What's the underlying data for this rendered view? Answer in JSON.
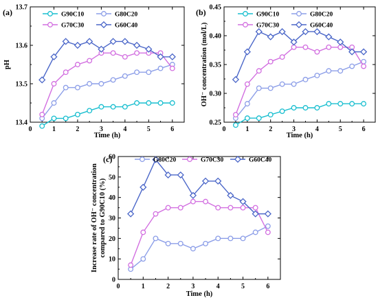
{
  "series_styles": {
    "G90C10": {
      "color": "#17becf",
      "marker": "circle"
    },
    "G80C20": {
      "color": "#8c9ee8",
      "marker": "circle"
    },
    "G70C30": {
      "color": "#d26ee0",
      "marker": "circle"
    },
    "G60C40": {
      "color": "#4a66c8",
      "marker": "diamond"
    }
  },
  "chart_data": [
    {
      "panel": "(a)",
      "type": "line",
      "xlabel": "Time (h)",
      "ylabel": "pH",
      "xlim": [
        0,
        6.5
      ],
      "ylim": [
        13.4,
        13.7
      ],
      "xticks": [
        0,
        1,
        2,
        3,
        4,
        5,
        6
      ],
      "xtick_labels": [
        "0",
        "1",
        "2",
        "3",
        "4",
        "5",
        "6"
      ],
      "yticks": [
        13.4,
        13.5,
        13.6,
        13.7
      ],
      "ytick_labels": [
        "13.4",
        "13.5",
        "13.6",
        "13.7"
      ],
      "legend": "top",
      "x": [
        0.5,
        1,
        1.5,
        2,
        2.5,
        3,
        3.5,
        4,
        4.5,
        5,
        5.5,
        6
      ],
      "series": [
        {
          "name": "G90C10",
          "values": [
            13.39,
            13.41,
            13.41,
            13.42,
            13.43,
            13.44,
            13.44,
            13.44,
            13.45,
            13.45,
            13.45,
            13.45
          ]
        },
        {
          "name": "G80C20",
          "values": [
            13.41,
            13.45,
            13.49,
            13.49,
            13.5,
            13.5,
            13.51,
            13.52,
            13.53,
            13.53,
            13.54,
            13.55
          ]
        },
        {
          "name": "G70C30",
          "values": [
            13.42,
            13.5,
            13.53,
            13.55,
            13.56,
            13.58,
            13.58,
            13.57,
            13.58,
            13.58,
            13.58,
            13.54
          ]
        },
        {
          "name": "G60C40",
          "values": [
            13.51,
            13.57,
            13.61,
            13.6,
            13.61,
            13.59,
            13.61,
            13.61,
            13.6,
            13.59,
            13.57,
            13.57
          ]
        }
      ]
    },
    {
      "panel": "(b)",
      "type": "line",
      "xlabel": "Time (h)",
      "ylabel": "OH⁻ concentration (mol/L)",
      "xlim": [
        0,
        6.5
      ],
      "ylim": [
        0.25,
        0.45
      ],
      "xticks": [
        0,
        1,
        2,
        3,
        4,
        5,
        6
      ],
      "xtick_labels": [
        "0",
        "1",
        "2",
        "3",
        "4",
        "5",
        "6"
      ],
      "yticks": [
        0.25,
        0.3,
        0.35,
        0.4,
        0.45
      ],
      "ytick_labels": [
        "0.25",
        "0.30",
        "0.35",
        "0.40",
        "0.45"
      ],
      "legend": "top",
      "x": [
        0.5,
        1,
        1.5,
        2,
        2.5,
        3,
        3.5,
        4,
        4.5,
        5,
        5.5,
        6
      ],
      "series": [
        {
          "name": "G90C10",
          "values": [
            0.245,
            0.257,
            0.257,
            0.263,
            0.269,
            0.275,
            0.275,
            0.275,
            0.282,
            0.282,
            0.282,
            0.282
          ]
        },
        {
          "name": "G80C20",
          "values": [
            0.257,
            0.282,
            0.309,
            0.309,
            0.316,
            0.316,
            0.324,
            0.331,
            0.339,
            0.339,
            0.347,
            0.355
          ]
        },
        {
          "name": "G70C30",
          "values": [
            0.263,
            0.316,
            0.339,
            0.355,
            0.363,
            0.38,
            0.38,
            0.372,
            0.38,
            0.38,
            0.38,
            0.347
          ]
        },
        {
          "name": "G60C40",
          "values": [
            0.324,
            0.372,
            0.407,
            0.398,
            0.407,
            0.389,
            0.407,
            0.407,
            0.398,
            0.389,
            0.372,
            0.372
          ]
        }
      ]
    },
    {
      "panel": "(c)",
      "type": "line",
      "xlabel": "Time (h)",
      "ylabel": "Increase rate of OH⁻ concentration compared to G90C10 (%)",
      "ylabel_lines": [
        "Increase rate of OH⁻ concentration",
        "compared to G90C10 (%)"
      ],
      "xlim": [
        0,
        6.5
      ],
      "ylim": [
        0,
        60
      ],
      "xticks": [
        0,
        1,
        2,
        3,
        4,
        5,
        6
      ],
      "xtick_labels": [
        "0",
        "1",
        "2",
        "3",
        "4",
        "5",
        "6"
      ],
      "yticks": [
        0,
        10,
        20,
        30,
        40,
        50,
        60
      ],
      "ytick_labels": [
        "0",
        "10",
        "20",
        "30",
        "40",
        "50",
        "60"
      ],
      "legend": "top",
      "x": [
        0.5,
        1,
        1.5,
        2,
        2.5,
        3,
        3.5,
        4,
        4.5,
        5,
        5.5,
        6
      ],
      "series": [
        {
          "name": "G80C20",
          "values": [
            5,
            10,
            20,
            17.5,
            17.5,
            15,
            17.5,
            20,
            20,
            20,
            23,
            26
          ]
        },
        {
          "name": "G70C30",
          "values": [
            7,
            23,
            32,
            35,
            35,
            38,
            38,
            35,
            35,
            35,
            35,
            23
          ]
        },
        {
          "name": "G60C40",
          "values": [
            32,
            45,
            58.5,
            51,
            51,
            41,
            48,
            48,
            41,
            38,
            32,
            32
          ]
        }
      ]
    }
  ]
}
